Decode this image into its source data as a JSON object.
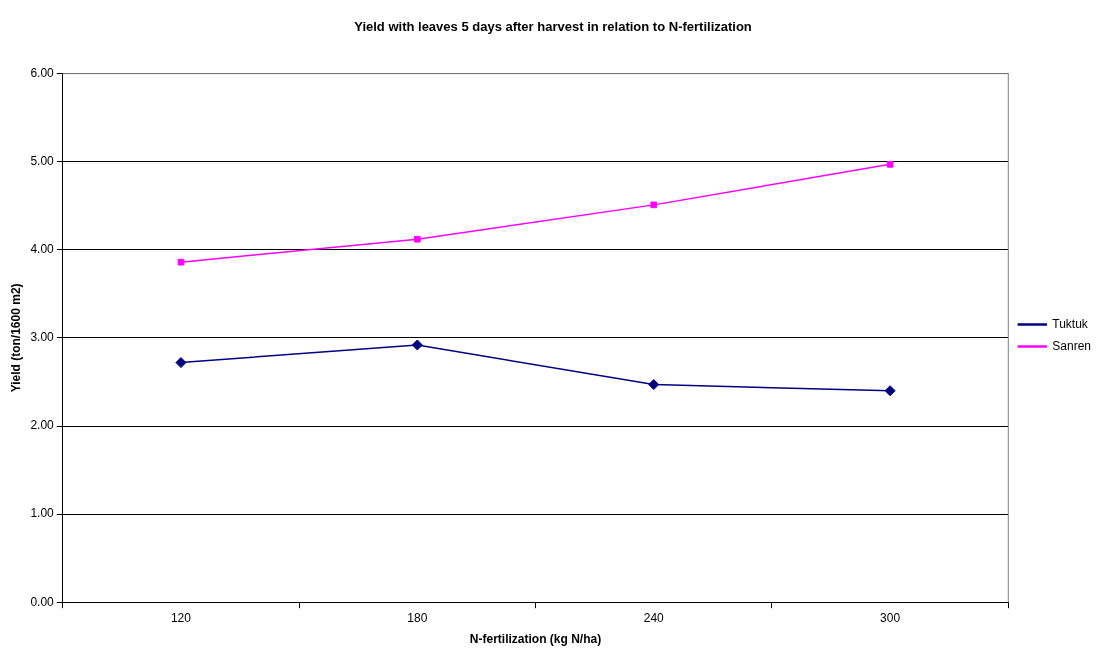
{
  "chart_data": {
    "type": "line",
    "title": "Yield with leaves 5 days after harvest in relation to N-fertilization",
    "xlabel": "N-fertilization (kg N/ha)",
    "ylabel": "Yield (ton/1600 m2)",
    "categories": [
      "120",
      "180",
      "240",
      "300"
    ],
    "series": [
      {
        "name": "Tuktuk",
        "color": "#000080",
        "marker": "diamond",
        "values": [
          2.72,
          2.92,
          2.47,
          2.4
        ]
      },
      {
        "name": "Sanren",
        "color": "#ff00ff",
        "marker": "square",
        "values": [
          3.86,
          4.12,
          4.51,
          4.97
        ]
      }
    ],
    "ylim": [
      0,
      6
    ],
    "yticks": [
      {
        "value": 0,
        "label": "0.00"
      },
      {
        "value": 1,
        "label": "1.00"
      },
      {
        "value": 2,
        "label": "2.00"
      },
      {
        "value": 3,
        "label": "3.00"
      },
      {
        "value": 4,
        "label": "4.00"
      },
      {
        "value": 5,
        "label": "5.00"
      },
      {
        "value": 6,
        "label": "6.00"
      }
    ],
    "grid": "y",
    "legend": "right",
    "line_style": "solid"
  }
}
